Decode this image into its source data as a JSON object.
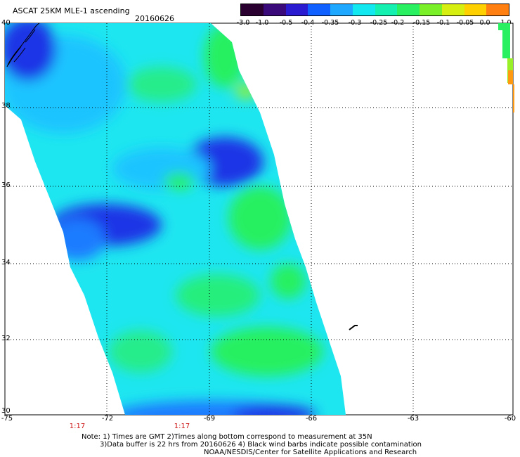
{
  "title": "ASCAT 25KM MLE-1 ascending",
  "date": "20160626",
  "colorbar": {
    "labels": [
      "-3.0",
      "-1.0",
      "-0.5",
      "-0.4",
      "-0.35",
      "-0.3",
      "-0.25",
      "-0.2",
      "-0.15",
      "-0.1",
      "-0.05",
      "0.0",
      "1.0"
    ],
    "colors": [
      "#2a0030",
      "#3b0a7a",
      "#2a1ad0",
      "#1060ff",
      "#1ea8ff",
      "#12e8f0",
      "#14f0b0",
      "#28f060",
      "#7af028",
      "#d6ee10",
      "#ffd000",
      "#ff8010",
      "#ff2010"
    ]
  },
  "axes": {
    "lat_labels": [
      "40",
      "38",
      "36",
      "34",
      "32",
      "30"
    ],
    "lon_labels": [
      "-75",
      "-72",
      "-69",
      "-66",
      "-63",
      "-60"
    ]
  },
  "pass_times": [
    "1:17",
    "1:17"
  ],
  "notes": [
    "Note: 1) Times are GMT 2)Times along bottom correspond to measurement at 35N",
    "3)Data buffer is 22 hrs from 20160626 4) Black wind barbs indicate possible contamination",
    "NOAA/NESDIS/Center for Satellite Applications and Research"
  ],
  "map_colors": {
    "cyan": "#1ee6f0",
    "light_blue": "#1ec4ff",
    "mid_blue": "#1a7cff",
    "deep_blue": "#1a34e6",
    "green": "#28f060",
    "yellow_green": "#9af028",
    "orange": "#ff9a10",
    "coast": "#000000"
  }
}
